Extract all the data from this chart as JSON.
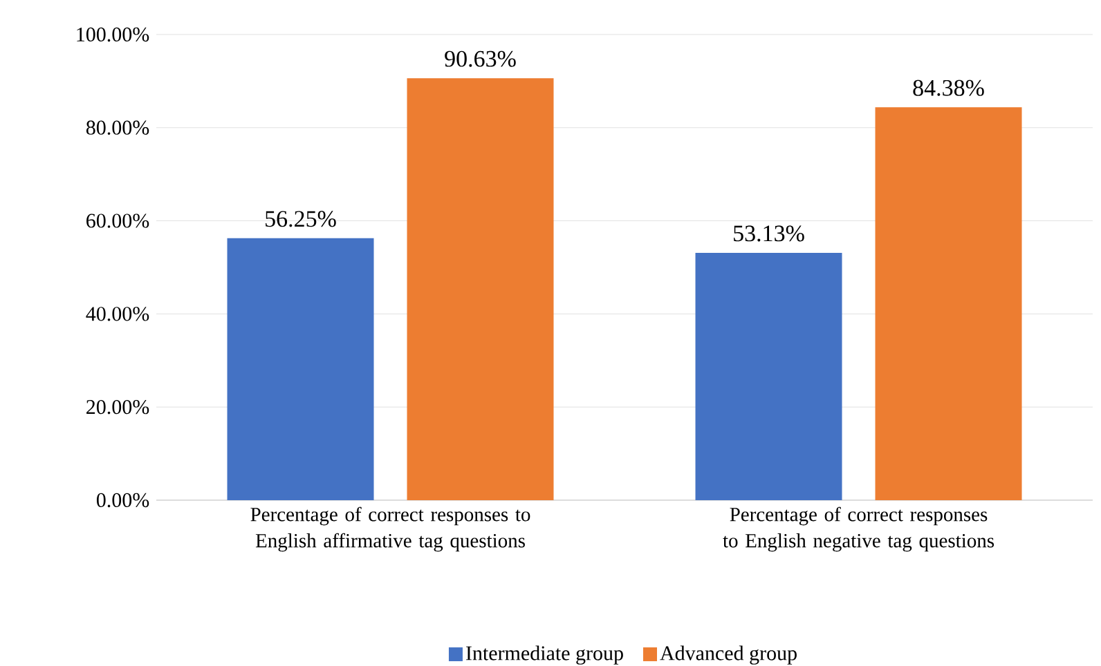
{
  "chart_data": {
    "type": "bar",
    "categories": [
      "Percentage of correct responses to English affirmative tag questions",
      "Percentage of correct responses to English negative tag questions"
    ],
    "series": [
      {
        "name": "Intermediate group",
        "color": "#4472c4",
        "values": [
          56.25,
          53.13
        ],
        "value_labels": [
          "56.25%",
          "53.13%"
        ]
      },
      {
        "name": "Advanced group",
        "color": "#ed7d31",
        "values": [
          90.63,
          84.38
        ],
        "value_labels": [
          "90.63%",
          "84.38%"
        ]
      }
    ],
    "ylim": [
      0,
      100
    ],
    "yticks": [
      {
        "value": 0,
        "label": "0.00%"
      },
      {
        "value": 20,
        "label": "20.00%"
      },
      {
        "value": 40,
        "label": "40.00%"
      },
      {
        "value": 60,
        "label": "60.00%"
      },
      {
        "value": 80,
        "label": "80.00%"
      },
      {
        "value": 100,
        "label": "100.00%"
      }
    ],
    "grid": "y",
    "legend": "bottom"
  }
}
